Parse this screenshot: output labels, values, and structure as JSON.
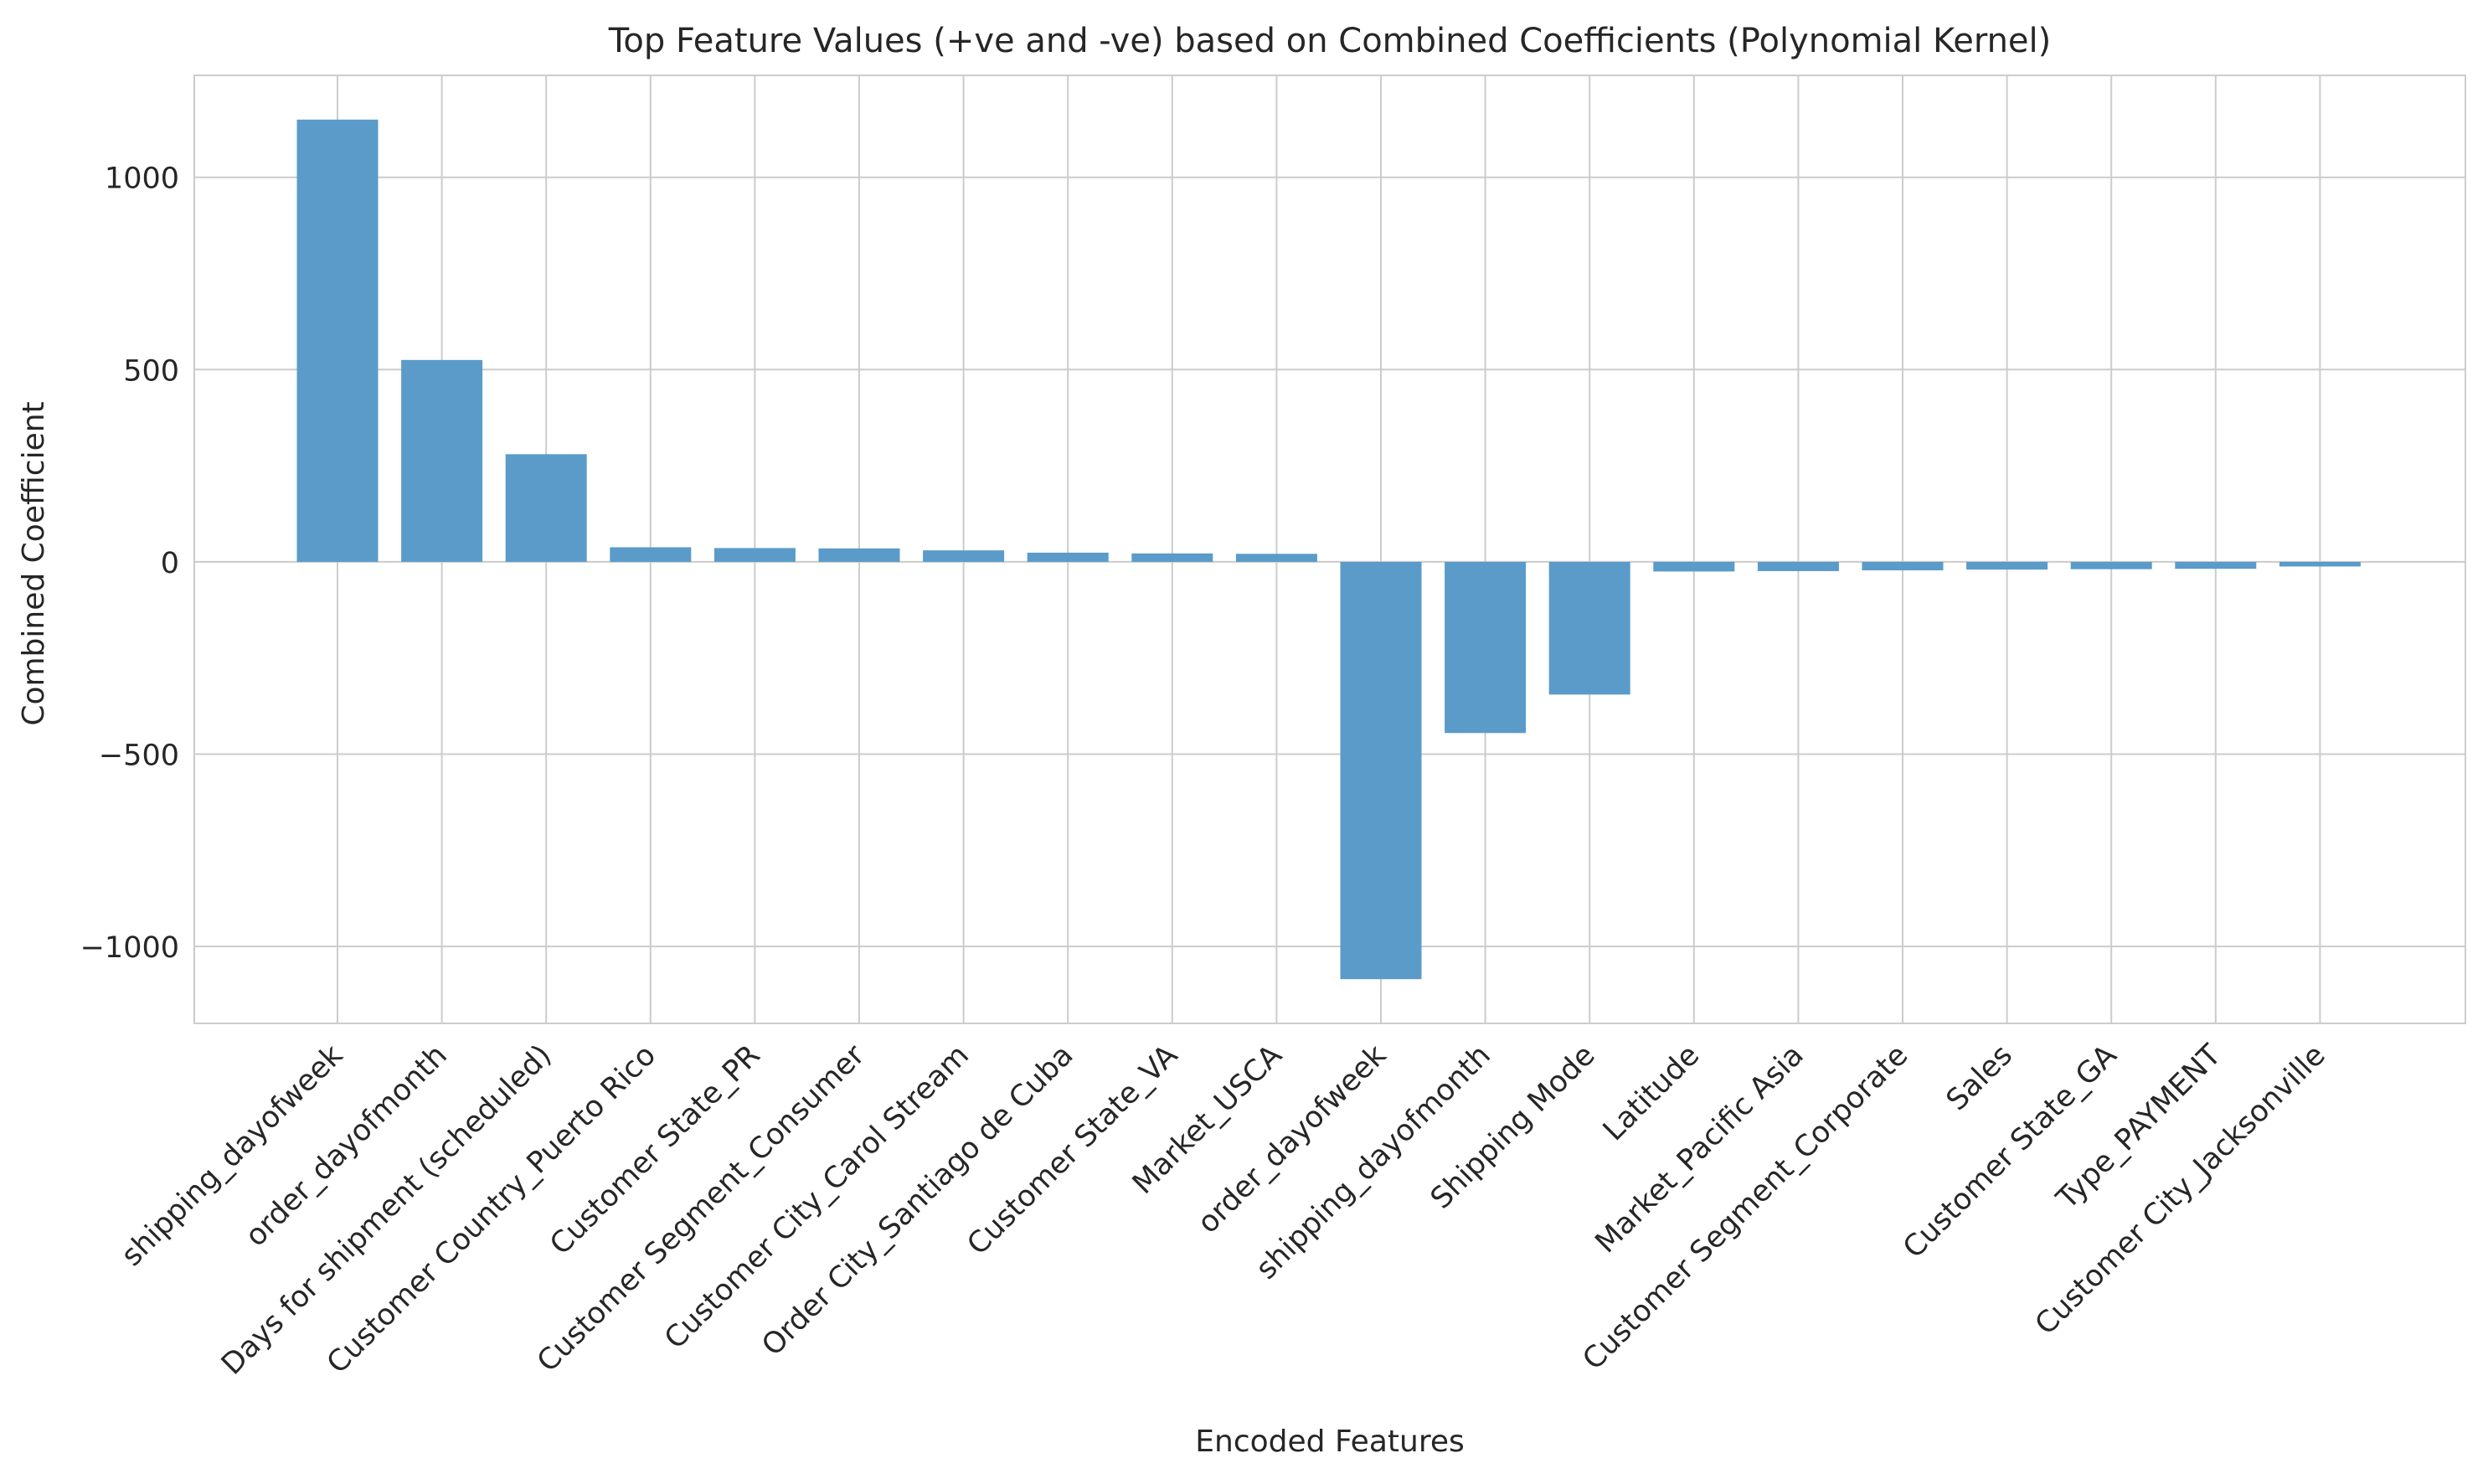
{
  "chart_data": {
    "type": "bar",
    "title": "Top Feature Values (+ve and -ve) based on Combined Coefficients (Polynomial Kernel)",
    "xlabel": "Encoded Features",
    "ylabel": "Combined Coefficient",
    "categories": [
      "shipping_dayofweek",
      "order_dayofmonth",
      "Days for shipment (scheduled)",
      "Customer Country_Puerto Rico",
      "Customer State_PR",
      "Customer Segment_Consumer",
      "Customer City_Carol Stream",
      "Order City_Santiago de Cuba",
      "Customer State_VA",
      "Market_USCA",
      "order_dayofweek",
      "shipping_dayofmonth",
      "Shipping Mode",
      "Latitude",
      "Market_Pacific Asia",
      "Customer Segment_Corporate",
      "Sales",
      "Customer State_GA",
      "Type_PAYMENT",
      "Customer City_Jacksonville"
    ],
    "values": [
      1150,
      525,
      280,
      38,
      36,
      35,
      30,
      24,
      22,
      21,
      -1085,
      -445,
      -345,
      -25,
      -24,
      -22,
      -20,
      -19,
      -18,
      -12
    ],
    "ylim": [
      -1200,
      1265
    ],
    "yticks": [
      -1000,
      -500,
      0,
      500,
      1000
    ],
    "ytick_labels": [
      "−1000",
      "−500",
      "0",
      "500",
      "1000"
    ],
    "grid": true,
    "bar_color": "#5b9bc9"
  }
}
